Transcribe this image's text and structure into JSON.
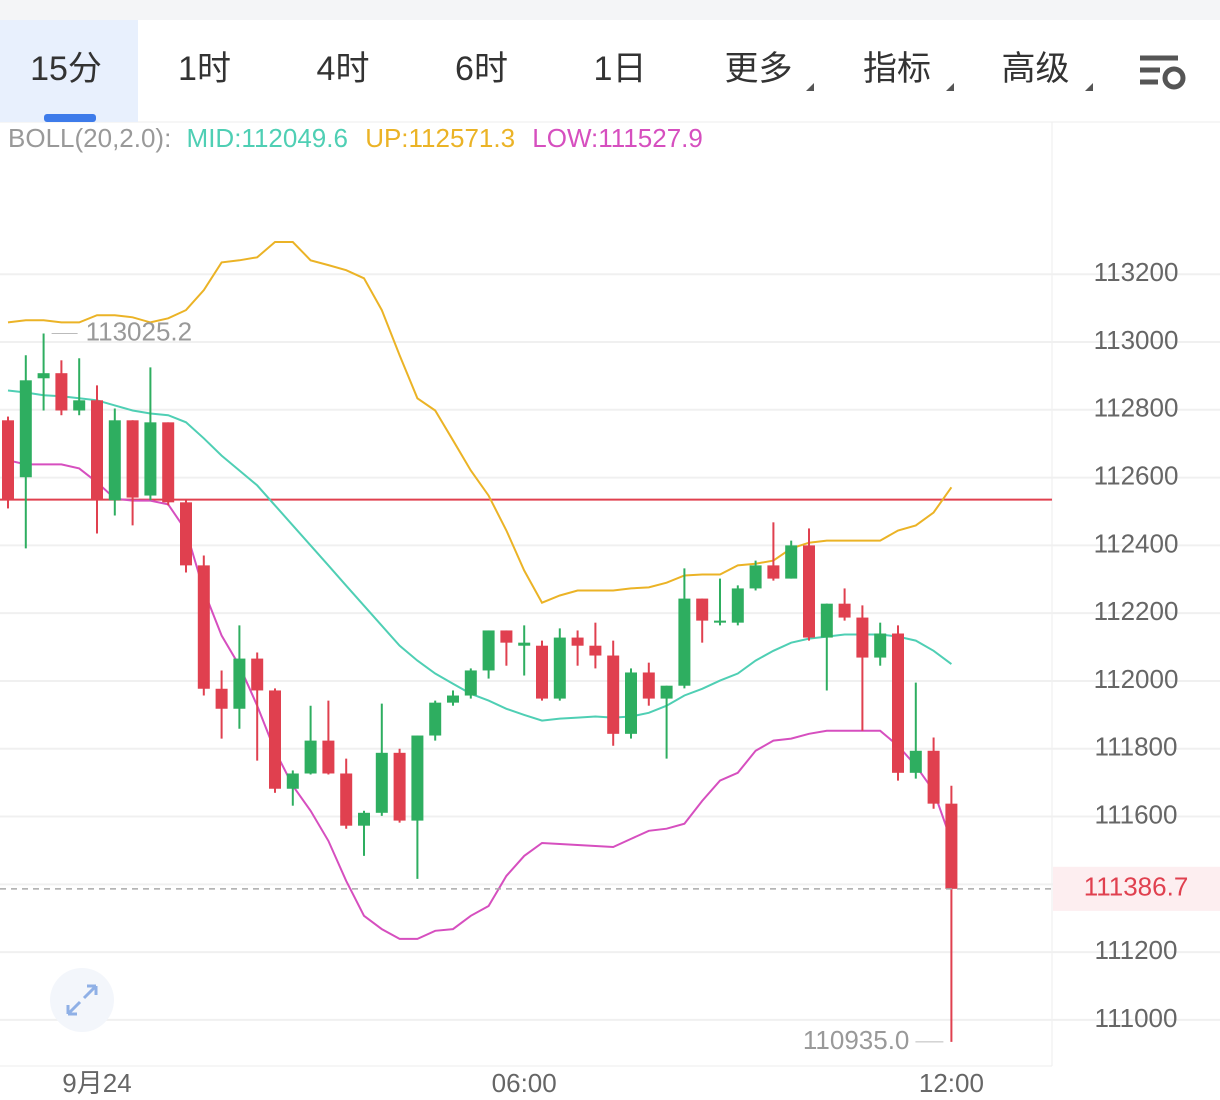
{
  "tabs": [
    "15分",
    "1时",
    "4时",
    "6时",
    "1日",
    "更多",
    "指标",
    "高级"
  ],
  "active_tab": 0,
  "chart_data": {
    "type": "candlestick",
    "indicator_label": "BOLL(20,2.0):",
    "categories": [
      null,
      null,
      null,
      null,
      null,
      "9月24",
      null,
      null,
      null,
      null,
      null,
      null,
      null,
      null,
      null,
      null,
      null,
      null,
      null,
      null,
      null,
      null,
      null,
      null,
      null,
      null,
      null,
      null,
      null,
      "06:00",
      null,
      null,
      null,
      null,
      null,
      null,
      null,
      null,
      null,
      null,
      null,
      null,
      null,
      null,
      null,
      null,
      null,
      null,
      null,
      null,
      null,
      null,
      null,
      "12:00"
    ],
    "open": [
      112769,
      112601,
      112893,
      112908,
      112798,
      112828,
      112533,
      112769,
      112547,
      112763,
      112527,
      112341,
      111977,
      111918,
      112066,
      111972,
      111682,
      111727,
      111824,
      111727,
      111573,
      111611,
      111788,
      111588,
      111839,
      111936,
      111957,
      112031,
      112149,
      112104,
      112104,
      111948,
      112128,
      112104,
      112075,
      111844,
      112025,
      111948,
      111986,
      112243,
      112172,
      112172,
      112273,
      112341,
      112302,
      112400,
      112128,
      112228,
      112187,
      112069,
      112140,
      111729,
      111794,
      111638
    ],
    "high": [
      112780,
      112961,
      113025.2,
      112946,
      112952,
      112872,
      112804,
      112769,
      112925,
      112763,
      112533,
      112370,
      112031,
      112164,
      112084,
      111978,
      111736,
      111927,
      111942,
      111771,
      111617,
      111933,
      111800,
      111839,
      111942,
      111972,
      112037,
      112149,
      112149,
      112164,
      112119,
      112155,
      112149,
      112172,
      112119,
      112037,
      112054,
      111986,
      112332,
      112243,
      112302,
      112282,
      112355,
      112468,
      112414,
      112450,
      112228,
      112273,
      112223,
      112172,
      112164,
      111995,
      111833,
      111691
    ],
    "low": [
      112509,
      112391,
      112798,
      112784,
      112784,
      112435,
      112488,
      112459,
      112533,
      112518,
      112320,
      111957,
      111830,
      111859,
      111765,
      111670,
      111632,
      111724,
      111724,
      111564,
      111484,
      111602,
      111582,
      111416,
      111824,
      111927,
      111948,
      112007,
      112045,
      112016,
      111942,
      111942,
      112045,
      112037,
      111809,
      111830,
      111927,
      111771,
      111978,
      112113,
      112164,
      112164,
      112267,
      112296,
      112302,
      112119,
      111972,
      112178,
      111853,
      112045,
      111706,
      111712,
      111623,
      110935.0
    ],
    "close": [
      112533,
      112887,
      112908,
      112798,
      112828,
      112533,
      112769,
      112541,
      112763,
      112527,
      112341,
      111977,
      111918,
      112066,
      111972,
      111682,
      111727,
      111824,
      111727,
      111573,
      111611,
      111788,
      111588,
      111839,
      111936,
      111957,
      112031,
      112149,
      112113,
      112113,
      111948,
      112128,
      112104,
      112075,
      111844,
      112025,
      111948,
      111986,
      112243,
      112178,
      112178,
      112273,
      112341,
      112302,
      112400,
      112128,
      112228,
      112187,
      112069,
      112140,
      111729,
      111794,
      111638,
      111386.7
    ],
    "up_color": "#2eae60",
    "down_color": "#e0404f",
    "series": [
      {
        "label": "MID:112049.6",
        "color": "#4fcfb4",
        "values": [
          112857,
          112851,
          112843,
          112840,
          112834,
          112828,
          112813,
          112798,
          112789,
          112784,
          112763,
          112716,
          112665,
          112621,
          112577,
          112518,
          112459,
          112400,
          112341,
          112281,
          112222,
          112163,
          112104,
          112060,
          112022,
          111992,
          111962,
          111942,
          111918,
          111900,
          111883,
          111889,
          111892,
          111895,
          111892,
          111895,
          111906,
          111927,
          111957,
          111977,
          112001,
          112022,
          112060,
          112089,
          112113,
          112125,
          112131,
          112137,
          112137,
          112137,
          112131,
          112119,
          112089,
          112049.6
        ]
      },
      {
        "label": "UP:112571.3",
        "color": "#ebb326",
        "values": [
          113058,
          113064,
          113064,
          113058,
          113058,
          113079,
          113079,
          113073,
          113058,
          113070,
          113094,
          113153,
          113235,
          113241,
          113250,
          113295,
          113295,
          113241,
          113227,
          113212,
          113188,
          113094,
          112961,
          112834,
          112798,
          112710,
          112621,
          112547,
          112444,
          112326,
          112231,
          112252,
          112267,
          112267,
          112267,
          112273,
          112276,
          112290,
          112311,
          112314,
          112314,
          112341,
          112346,
          112355,
          112391,
          112408,
          112414,
          112414,
          112414,
          112414,
          112444,
          112459,
          112497,
          112571.3
        ]
      },
      {
        "label": "LOW:111527.9",
        "color": "#d64fbf",
        "values": [
          112651,
          112639,
          112639,
          112639,
          112627,
          112586,
          112538,
          112532,
          112532,
          112521,
          112444,
          112267,
          112134,
          112045,
          111927,
          111794,
          111691,
          111617,
          111528,
          111410,
          111307,
          111268,
          111239,
          111239,
          111263,
          111268,
          111307,
          111336,
          111425,
          111484,
          111522,
          111519,
          111516,
          111513,
          111510,
          111534,
          111558,
          111564,
          111579,
          111646,
          111706,
          111729,
          111794,
          111824,
          111830,
          111844,
          111853,
          111853,
          111853,
          111853,
          111809,
          111750,
          111676,
          111527.9
        ]
      }
    ],
    "ylim": [
      110864,
      113655
    ],
    "yticks": [
      111000,
      111200,
      111400,
      111600,
      111800,
      112000,
      112200,
      112400,
      112600,
      112800,
      113000,
      113200
    ],
    "grid": true,
    "last_price": 111386.7,
    "reference_line": 112535,
    "reference_color": "#e0404f",
    "max_label": 113025.2,
    "min_label": {
      "value": 110935.0,
      "label": "110935.0"
    }
  }
}
